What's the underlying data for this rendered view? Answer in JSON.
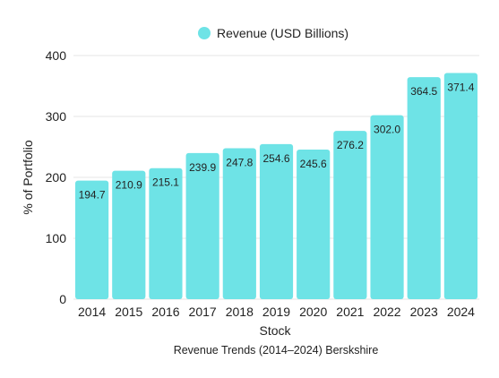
{
  "chart_data": {
    "type": "bar",
    "categories": [
      "2014",
      "2015",
      "2016",
      "2017",
      "2018",
      "2019",
      "2020",
      "2021",
      "2022",
      "2023",
      "2024"
    ],
    "series": [
      {
        "name": "Revenue (USD Billions)",
        "values": [
          194.7,
          210.9,
          215.1,
          239.9,
          247.8,
          254.6,
          245.6,
          276.2,
          302.0,
          364.5,
          371.4
        ],
        "labels": [
          "194.7",
          "210.9",
          "215.1",
          "239.9",
          "247.8",
          "254.6",
          "245.6",
          "276.2",
          "302.0",
          "364.5",
          "371.4"
        ]
      }
    ],
    "xlabel": "Stock",
    "ylabel": "% of Portfolio",
    "caption": "Revenue Trends (2014–2024) Berskshire",
    "ylim": [
      0,
      400
    ],
    "yticks": [
      "0",
      "100",
      "200",
      "300",
      "400"
    ],
    "grid": true,
    "legend_position": "top-center",
    "colors": {
      "bar": "#6ee3e6",
      "grid": "#e6e6e6",
      "text": "#222222"
    }
  }
}
